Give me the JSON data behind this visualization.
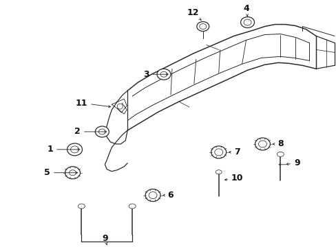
{
  "bg_color": "#ffffff",
  "fig_width": 4.89,
  "fig_height": 3.6,
  "dpi": 100,
  "line_color": "#2a2a2a",
  "lw": 0.9
}
